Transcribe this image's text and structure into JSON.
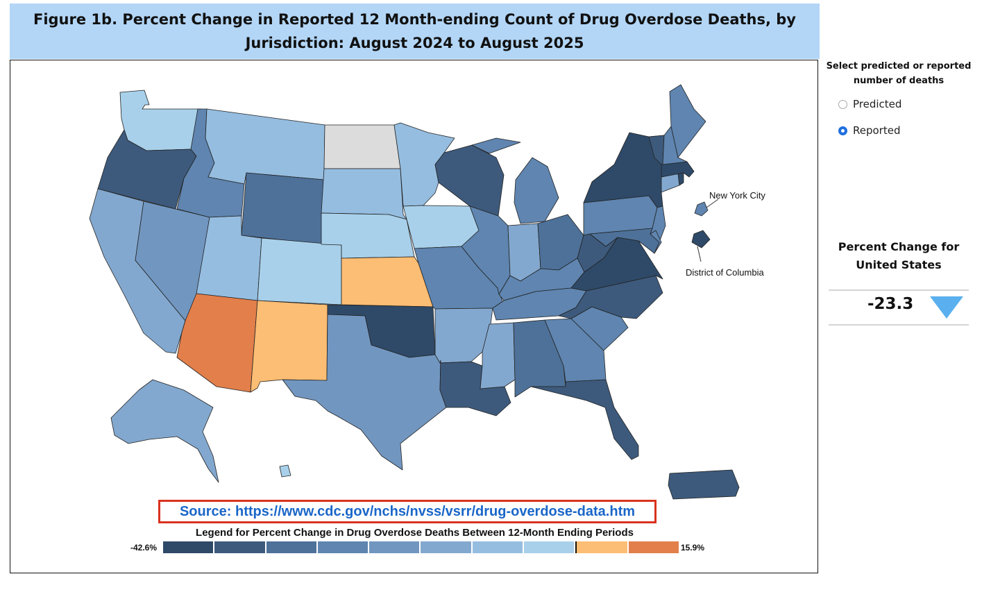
{
  "title": {
    "line1": "Figure 1b. Percent Change in Reported 12 Month-ending Count of Drug Overdose Deaths, by",
    "line2": "Jurisdiction: August 2024 to August 2025"
  },
  "controls": {
    "select_label_line1": "Select predicted or reported",
    "select_label_line2": "number of deaths",
    "options": [
      {
        "label": "Predicted",
        "selected": false
      },
      {
        "label": "Reported",
        "selected": true
      }
    ]
  },
  "summary": {
    "title_line1": "Percent Change for",
    "title_line2": "United States",
    "value": "-23.3",
    "direction_icon": "down-triangle-icon"
  },
  "map": {
    "annotations": {
      "nyc": "New York City",
      "dc": "District of Columbia"
    },
    "source": "Source: https://www.cdc.gov/nchs/nvss/vsrr/drug-overdose-data.htm",
    "legend": {
      "title": "Legend for Percent Change in Drug Overdose Deaths Between 12-Month Ending Periods",
      "min": "-42.6%",
      "max": "15.9%",
      "colors": [
        "#2f4a68",
        "#3d5a7c",
        "#4e7199",
        "#5f85b0",
        "#7196c0",
        "#83a8cf",
        "#95bde0",
        "#a8d0ea",
        "#fcbd74",
        "#e27f4b"
      ]
    },
    "colors": {
      "WA": "#a8d0ea",
      "OR": "#3d5a7c",
      "CA": "#83a8cf",
      "NV": "#7196c0",
      "ID": "#5f85b0",
      "MT": "#95bde0",
      "WY": "#4e7199",
      "UT": "#95bde0",
      "AZ": "#e27f4b",
      "CO": "#a8d0ea",
      "NM": "#fcbd74",
      "ND": "#dcdcdc",
      "SD": "#95bde0",
      "NE": "#a8d0ea",
      "KS": "#fcbd74",
      "OK": "#2f4a68",
      "TX": "#7196c0",
      "MN": "#95bde0",
      "IA": "#a8d0ea",
      "MO": "#5f85b0",
      "AR": "#83a8cf",
      "LA": "#3d5a7c",
      "WI": "#3d5a7c",
      "IL": "#5f85b0",
      "MI": "#5f85b0",
      "IN": "#83a8cf",
      "OH": "#4e7199",
      "KY": "#5f85b0",
      "TN": "#5f85b0",
      "MS": "#83a8cf",
      "AL": "#4e7199",
      "GA": "#5f85b0",
      "FL": "#3d5a7c",
      "SC": "#5f85b0",
      "NC": "#3d5a7c",
      "VA": "#2f4a68",
      "WV": "#3d5a7c",
      "PA": "#5f85b0",
      "NY": "#2f4a68",
      "NJ": "#5f85b0",
      "MD": "#4e7199",
      "DE": "#5f85b0",
      "CT": "#83a8cf",
      "MA": "#2f4a68",
      "RI": "#2f4a68",
      "VT": "#3d5a7c",
      "NH": "#5f85b0",
      "ME": "#5f85b0",
      "AK": "#83a8cf",
      "HI": "#a8d0ea",
      "PR": "#3d5a7c",
      "NYC": "#5f85b0",
      "DC": "#2f4a68"
    }
  }
}
